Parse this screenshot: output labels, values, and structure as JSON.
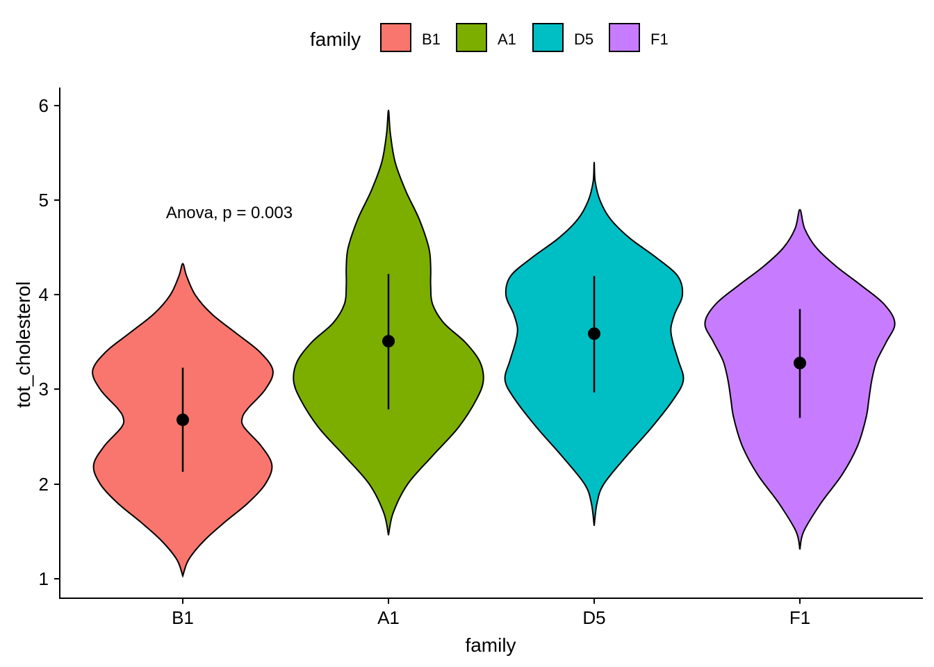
{
  "chart_data": {
    "type": "violin",
    "xlabel": "family",
    "ylabel": "tot_cholesterol",
    "ylim": [
      1,
      6
    ],
    "yticks": [
      "1",
      "2",
      "3",
      "4",
      "5",
      "6"
    ],
    "categories": [
      "B1",
      "A1",
      "D5",
      "F1"
    ],
    "legend": {
      "title": "family",
      "position": "top",
      "items": [
        {
          "label": "B1",
          "color": "#F8766D"
        },
        {
          "label": "A1",
          "color": "#7CAE00"
        },
        {
          "label": "D5",
          "color": "#00BFC4"
        },
        {
          "label": "F1",
          "color": "#C77CFF"
        }
      ]
    },
    "annotation": "Anova, p = 0.003",
    "series": [
      {
        "category": "B1",
        "color": "#F8766D",
        "mean": 2.68,
        "lower": 2.13,
        "upper": 3.23,
        "min": 1.03,
        "max": 4.33,
        "density": [
          [
            1.03,
            0
          ],
          [
            1.2,
            0.06
          ],
          [
            1.4,
            0.22
          ],
          [
            1.6,
            0.44
          ],
          [
            1.8,
            0.68
          ],
          [
            2.0,
            0.86
          ],
          [
            2.2,
            0.93
          ],
          [
            2.4,
            0.82
          ],
          [
            2.6,
            0.64
          ],
          [
            2.7,
            0.62
          ],
          [
            2.8,
            0.68
          ],
          [
            3.0,
            0.86
          ],
          [
            3.2,
            0.94
          ],
          [
            3.4,
            0.8
          ],
          [
            3.6,
            0.55
          ],
          [
            3.8,
            0.3
          ],
          [
            4.0,
            0.13
          ],
          [
            4.2,
            0.04
          ],
          [
            4.33,
            0
          ]
        ]
      },
      {
        "category": "A1",
        "color": "#7CAE00",
        "mean": 3.51,
        "lower": 2.79,
        "upper": 4.22,
        "min": 1.46,
        "max": 5.95,
        "density": [
          [
            1.46,
            0
          ],
          [
            1.7,
            0.05
          ],
          [
            2.0,
            0.2
          ],
          [
            2.3,
            0.46
          ],
          [
            2.6,
            0.73
          ],
          [
            2.9,
            0.92
          ],
          [
            3.1,
            0.99
          ],
          [
            3.3,
            0.95
          ],
          [
            3.5,
            0.8
          ],
          [
            3.7,
            0.58
          ],
          [
            3.9,
            0.46
          ],
          [
            4.1,
            0.44
          ],
          [
            4.3,
            0.44
          ],
          [
            4.5,
            0.42
          ],
          [
            4.8,
            0.32
          ],
          [
            5.1,
            0.18
          ],
          [
            5.4,
            0.07
          ],
          [
            5.7,
            0.02
          ],
          [
            5.95,
            0
          ]
        ]
      },
      {
        "category": "D5",
        "color": "#00BFC4",
        "mean": 3.59,
        "lower": 2.97,
        "upper": 4.2,
        "min": 1.56,
        "max": 5.4,
        "density": [
          [
            1.56,
            0
          ],
          [
            1.8,
            0.03
          ],
          [
            2.0,
            0.1
          ],
          [
            2.3,
            0.34
          ],
          [
            2.6,
            0.6
          ],
          [
            2.9,
            0.83
          ],
          [
            3.1,
            0.93
          ],
          [
            3.3,
            0.88
          ],
          [
            3.5,
            0.82
          ],
          [
            3.65,
            0.8
          ],
          [
            3.8,
            0.84
          ],
          [
            4.0,
            0.92
          ],
          [
            4.2,
            0.87
          ],
          [
            4.4,
            0.64
          ],
          [
            4.6,
            0.37
          ],
          [
            4.8,
            0.17
          ],
          [
            5.0,
            0.06
          ],
          [
            5.2,
            0.01
          ],
          [
            5.4,
            0
          ]
        ]
      },
      {
        "category": "F1",
        "color": "#C77CFF",
        "mean": 3.28,
        "lower": 2.7,
        "upper": 3.85,
        "min": 1.31,
        "max": 4.9,
        "density": [
          [
            1.31,
            0
          ],
          [
            1.5,
            0.04
          ],
          [
            1.8,
            0.22
          ],
          [
            2.1,
            0.44
          ],
          [
            2.4,
            0.6
          ],
          [
            2.7,
            0.69
          ],
          [
            2.9,
            0.72
          ],
          [
            3.1,
            0.75
          ],
          [
            3.3,
            0.8
          ],
          [
            3.5,
            0.9
          ],
          [
            3.7,
            0.99
          ],
          [
            3.9,
            0.88
          ],
          [
            4.1,
            0.64
          ],
          [
            4.3,
            0.38
          ],
          [
            4.5,
            0.17
          ],
          [
            4.7,
            0.05
          ],
          [
            4.9,
            0
          ]
        ]
      }
    ]
  }
}
